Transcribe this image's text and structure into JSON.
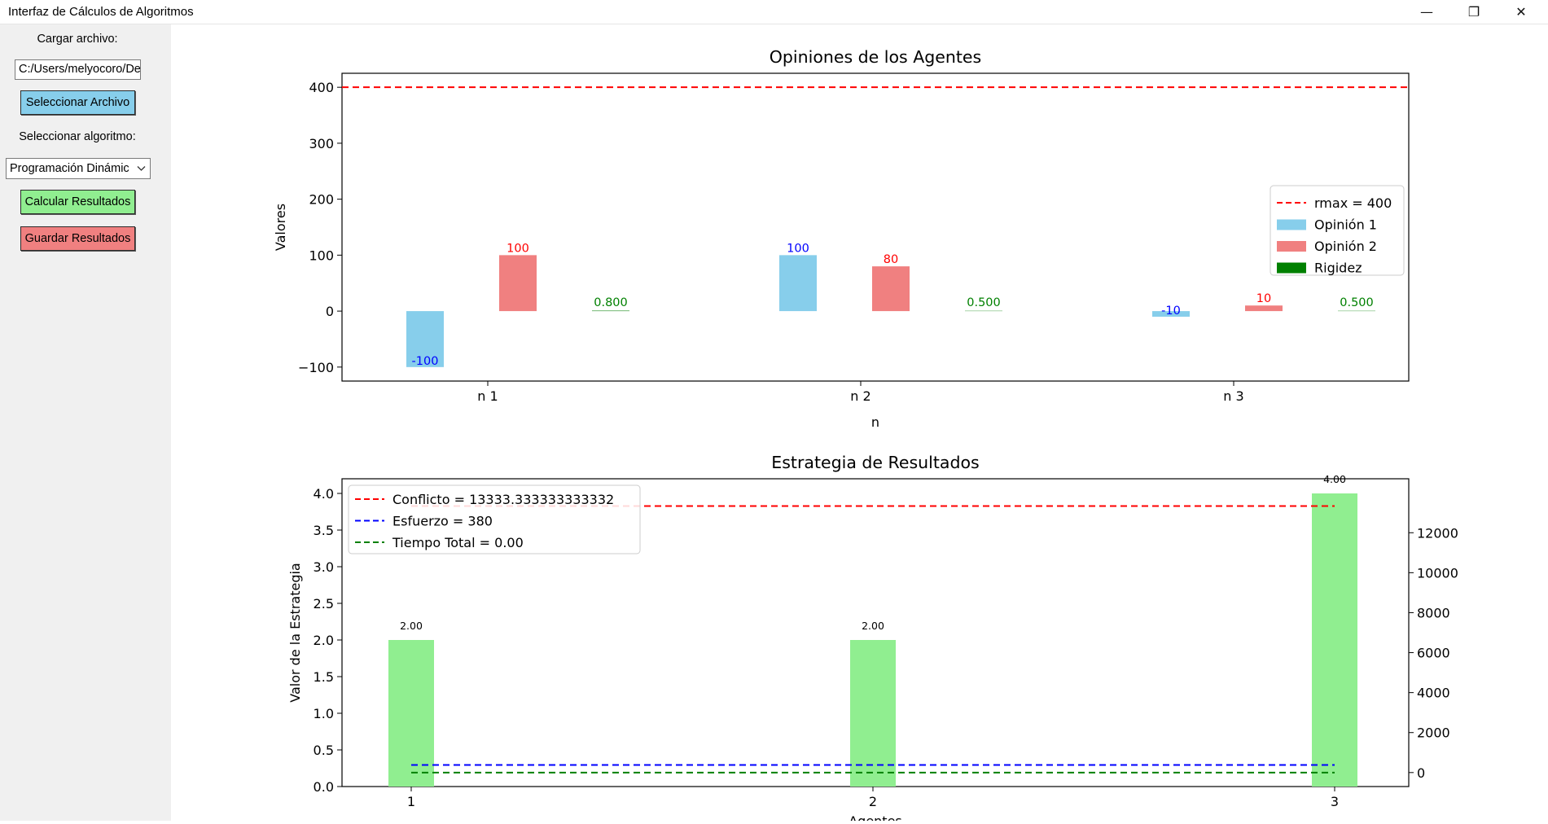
{
  "window": {
    "title": "Interfaz de Cálculos de Algoritmos",
    "minimize_glyph": "—",
    "restore_glyph": "❐",
    "close_glyph": "✕"
  },
  "sidebar": {
    "load_label": "Cargar archivo:",
    "file_path": "C:/Users/melyocoro/De",
    "select_file_button": "Seleccionar Archivo",
    "algorithm_label": "Seleccionar algoritmo:",
    "algorithm_selected": "Programación Dinámic",
    "calculate_button": "Calcular Resultados",
    "save_button": "Guardar Resultados",
    "colors": {
      "select_button": "#87ceeb",
      "calculate_button": "#90ee90",
      "save_button": "#f08080"
    }
  },
  "chart_data": [
    {
      "type": "bar",
      "title": "Opiniones de los Agentes",
      "xlabel": "n",
      "ylabel": "Valores",
      "categories": [
        "n 1",
        "n 2",
        "n 3"
      ],
      "ylim": [
        -125,
        425
      ],
      "yticks": [
        -100,
        0,
        100,
        200,
        300,
        400
      ],
      "series": [
        {
          "name": "Opinión 1",
          "values": [
            -100,
            100,
            -10
          ],
          "color": "#87ceeb",
          "label_color": "#0000ff"
        },
        {
          "name": "Opinión 2",
          "values": [
            100,
            80,
            10
          ],
          "color": "#f08080",
          "label_color": "#ff0000"
        },
        {
          "name": "Rigidez",
          "values": [
            0.8,
            0.5,
            0.5
          ],
          "labels": [
            "0.800",
            "0.500",
            "0.500"
          ],
          "color": "#008000",
          "label_color": "#008000"
        }
      ],
      "reference_lines": [
        {
          "name": "rmax = 400",
          "value": 400,
          "color": "#ff0000",
          "style": "dashed"
        }
      ],
      "legend": "center-right"
    },
    {
      "type": "bar",
      "title": "Estrategia de Resultados",
      "xlabel": "Agentes",
      "ylabel": "Valor de la Estrategia",
      "categories": [
        "1",
        "2",
        "3"
      ],
      "values": [
        2.0,
        2.0,
        4.0
      ],
      "value_labels": [
        "2.00",
        "2.00",
        "4.00"
      ],
      "bar_color": "#90ee90",
      "ylim": [
        0,
        4.2
      ],
      "yticks": [
        "0.0",
        "0.5",
        "1.0",
        "1.5",
        "2.0",
        "2.5",
        "3.0",
        "3.5",
        "4.0"
      ],
      "y2lim": [
        -700,
        14700
      ],
      "y2ticks": [
        "0",
        "2000",
        "4000",
        "6000",
        "8000",
        "10000",
        "12000"
      ],
      "reference_lines": [
        {
          "name": "Conflicto = 13333.333333333332",
          "value": 13333.333333333332,
          "axis": "y2",
          "color": "#ff0000",
          "style": "dashed"
        },
        {
          "name": "Esfuerzo = 380",
          "value": 380,
          "axis": "y2",
          "color": "#0000ff",
          "style": "dashed"
        },
        {
          "name": "Tiempo Total = 0.00",
          "value": 0,
          "axis": "y2",
          "color": "#008000",
          "style": "dashed"
        }
      ],
      "legend": "upper-left"
    }
  ]
}
